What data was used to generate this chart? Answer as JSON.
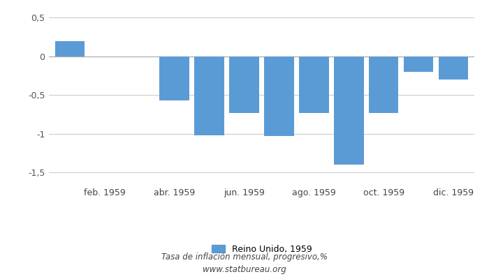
{
  "month_positions": [
    1,
    2,
    3,
    4,
    5,
    6,
    7,
    8,
    9,
    10,
    11,
    12
  ],
  "values": [
    0.2,
    0.0,
    0.0,
    -0.57,
    -1.02,
    -0.73,
    -1.03,
    -0.73,
    -1.4,
    -0.73,
    -0.2,
    -0.3
  ],
  "bar_color": "#5B9BD5",
  "bar_width": 0.85,
  "xtick_positions": [
    2,
    4,
    6,
    8,
    10,
    12
  ],
  "xtick_labels": [
    "feb. 1959",
    "abr. 1959",
    "jun. 1959",
    "ago. 1959",
    "oct. 1959",
    "dic. 1959"
  ],
  "ytick_positions": [
    -1.5,
    -1.0,
    -0.5,
    0.0,
    0.5
  ],
  "ytick_labels": [
    "-1,5",
    "-1",
    "-0,5",
    "0",
    "0,5"
  ],
  "ylim": [
    -1.65,
    0.62
  ],
  "xlim": [
    0.4,
    12.6
  ],
  "legend_label": "Reino Unido, 1959",
  "subtitle": "Tasa de inflación mensual, progresivo,%",
  "website": "www.statbureau.org",
  "background_color": "#ffffff",
  "grid_color": "#cccccc"
}
